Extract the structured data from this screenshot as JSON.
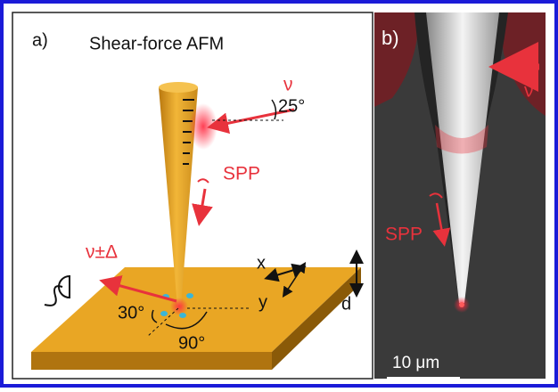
{
  "panels": [
    {
      "label": "a)",
      "title": "Shear-force AFM",
      "annotations": {
        "incident": "ν",
        "incident_angle": "25°",
        "spp": "SPP",
        "scattered": "ν±Δ",
        "axis_x": "x",
        "axis_y": "y",
        "axis_d": "d",
        "angle_30": "30°",
        "angle_90": "90°"
      }
    },
    {
      "label": "b)",
      "annotations": {
        "incident": "ν",
        "spp": "SPP"
      },
      "scale_bar": "10 μm"
    }
  ]
}
